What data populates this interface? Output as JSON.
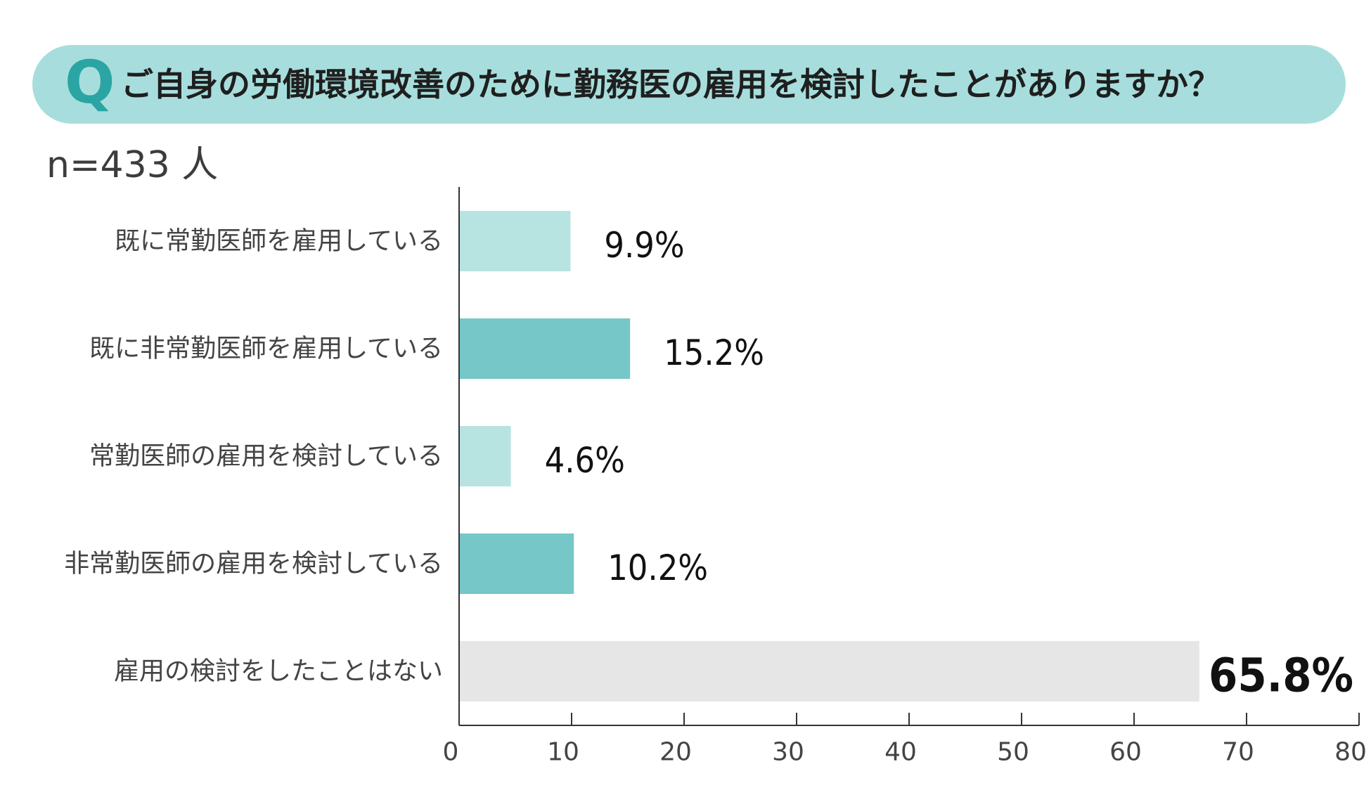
{
  "header": {
    "q_mark": "Q",
    "question": "ご自身の労働環境改善のために勤務医の雇用を検討したことがありますか？"
  },
  "sample_size": "n=433 人",
  "colors": {
    "banner": "#a7dedd",
    "q_mark": "#2aa5a4",
    "bar_light": "#b7e3e1",
    "bar_teal": "#76c7c7",
    "bar_gray": "#e6e6e6",
    "axis": "#333333"
  },
  "chart_data": {
    "type": "bar",
    "orientation": "horizontal",
    "title": "",
    "xlabel": "",
    "ylabel": "",
    "xlim": [
      0,
      80
    ],
    "ticks": [
      0,
      10,
      20,
      30,
      40,
      50,
      60,
      70,
      80
    ],
    "grid": false,
    "legend": "none",
    "categories": [
      "既に常勤医師を雇用している",
      "既に非常勤医師を雇用している",
      "常勤医師の雇用を検討している",
      "非常勤医師の雇用を検討している",
      "雇用の検討をしたことはない"
    ],
    "values": [
      9.9,
      15.2,
      4.6,
      10.2,
      65.8
    ],
    "value_labels": [
      "9.9%",
      "15.2%",
      "4.6%",
      "10.2%",
      "65.8%"
    ],
    "bar_colors": [
      "#b7e3e1",
      "#76c7c7",
      "#b7e3e1",
      "#76c7c7",
      "#e6e6e6"
    ],
    "highlight_index": 4
  }
}
